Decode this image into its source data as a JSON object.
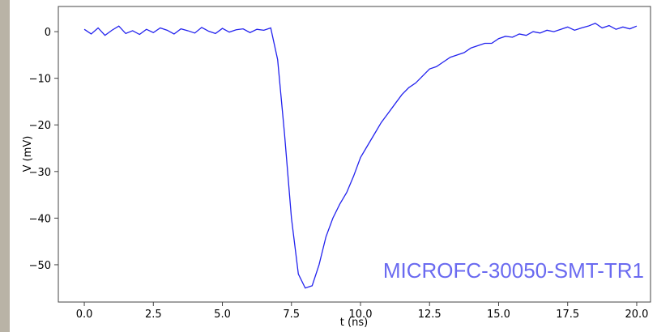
{
  "chart_data": {
    "type": "line",
    "xlabel": "t (ns)",
    "ylabel": "V (mV)",
    "annotation": "MICROFC-30050-SMT-TR1",
    "xlim": [
      -0.94,
      20.5
    ],
    "ylim": [
      -58,
      5.4
    ],
    "xticks": [
      {
        "value": 0,
        "label": "0.0"
      },
      2.5,
      {
        "value": 5,
        "label": "5.0"
      },
      7.5,
      {
        "value": 10,
        "label": "10.0"
      },
      12.5,
      {
        "value": 15,
        "label": "15.0"
      },
      17.5,
      {
        "value": 20,
        "label": "20.0"
      }
    ],
    "yticks": [
      0,
      {
        "value": -10,
        "label": "−10"
      },
      {
        "value": -20,
        "label": "−20"
      },
      {
        "value": -30,
        "label": "−30"
      },
      {
        "value": -40,
        "label": "−40"
      },
      {
        "value": -50,
        "label": "−50"
      }
    ],
    "x": [
      0,
      0.25,
      0.5,
      0.75,
      1,
      1.25,
      1.5,
      1.75,
      2,
      2.25,
      2.5,
      2.75,
      3,
      3.25,
      3.5,
      3.75,
      4,
      4.25,
      4.5,
      4.75,
      5,
      5.25,
      5.5,
      5.75,
      6,
      6.25,
      6.5,
      6.75,
      7,
      7.25,
      7.5,
      7.75,
      8,
      8.25,
      8.5,
      8.75,
      9,
      9.25,
      9.5,
      9.75,
      10,
      10.25,
      10.5,
      10.75,
      11,
      11.25,
      11.5,
      11.75,
      12,
      12.25,
      12.5,
      12.75,
      13,
      13.25,
      13.5,
      13.75,
      14,
      14.25,
      14.5,
      14.75,
      15,
      15.25,
      15.5,
      15.75,
      16,
      16.25,
      16.5,
      16.75,
      17,
      17.25,
      17.5,
      17.75,
      18,
      18.25,
      18.5,
      18.75,
      19,
      19.25,
      19.5,
      19.75,
      20
    ],
    "series": [
      {
        "color": "#2222ee",
        "values": [
          0.5,
          -0.5,
          0.8,
          -0.8,
          0.3,
          1.2,
          -0.4,
          0.2,
          -0.6,
          0.5,
          -0.2,
          0.8,
          0.3,
          -0.5,
          0.6,
          0.2,
          -0.3,
          0.9,
          0.1,
          -0.4,
          0.7,
          -0.1,
          0.4,
          0.6,
          -0.2,
          0.5,
          0.3,
          0.8,
          -6,
          -22,
          -40,
          -52,
          -55,
          -54.5,
          -50,
          -44,
          -40,
          -37,
          -34.5,
          -31,
          -27,
          -24.5,
          -22,
          -19.5,
          -17.5,
          -15.5,
          -13.5,
          -12,
          -11,
          -9.5,
          -8,
          -7.5,
          -6.5,
          -5.5,
          -5,
          -4.5,
          -3.5,
          -3,
          -2.5,
          -2.5,
          -1.5,
          -1,
          -1.2,
          -0.5,
          -0.8,
          0,
          -0.3,
          0.3,
          0,
          0.5,
          1,
          0.3,
          0.8,
          1.2,
          1.8,
          0.8,
          1.3,
          0.5,
          1,
          0.6,
          1.2
        ]
      }
    ]
  }
}
